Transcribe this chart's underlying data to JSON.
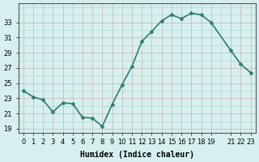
{
  "x": [
    0,
    1,
    2,
    3,
    4,
    5,
    6,
    7,
    8,
    9,
    10,
    11,
    12,
    13,
    14,
    15,
    16,
    17,
    18,
    19,
    21,
    22,
    23
  ],
  "y": [
    24.0,
    23.2,
    22.8,
    21.2,
    22.4,
    22.3,
    20.5,
    20.4,
    19.3,
    22.2,
    24.8,
    27.2,
    30.5,
    31.8,
    33.2,
    34.0,
    33.5,
    34.2,
    34.0,
    33.0,
    29.3,
    27.5,
    26.4
  ],
  "line_color": "#2e7d6e",
  "marker": "D",
  "markersize": 2.5,
  "linewidth": 1.2,
  "bg_color": "#d6f0ef",
  "grid_minor_color": "#b0d8d5",
  "grid_major_color": "#c8a0a0",
  "xlabel": "Humidex (Indice chaleur)",
  "xlim": [
    -0.5,
    23.5
  ],
  "ylim": [
    18.5,
    35.5
  ],
  "yticks": [
    19,
    21,
    23,
    25,
    27,
    29,
    31,
    33
  ],
  "xtick_positions": [
    0,
    1,
    2,
    3,
    4,
    5,
    6,
    7,
    8,
    9,
    10,
    11,
    12,
    13,
    14,
    15,
    16,
    17,
    18,
    19,
    21,
    22,
    23
  ],
  "xtick_labels": [
    "0",
    "1",
    "2",
    "3",
    "4",
    "5",
    "6",
    "7",
    "8",
    "9",
    "10",
    "11",
    "12",
    "13",
    "14",
    "15",
    "16",
    "17",
    "18",
    "19",
    "21",
    "22",
    "23"
  ],
  "tick_fontsize": 6,
  "label_fontsize": 7
}
